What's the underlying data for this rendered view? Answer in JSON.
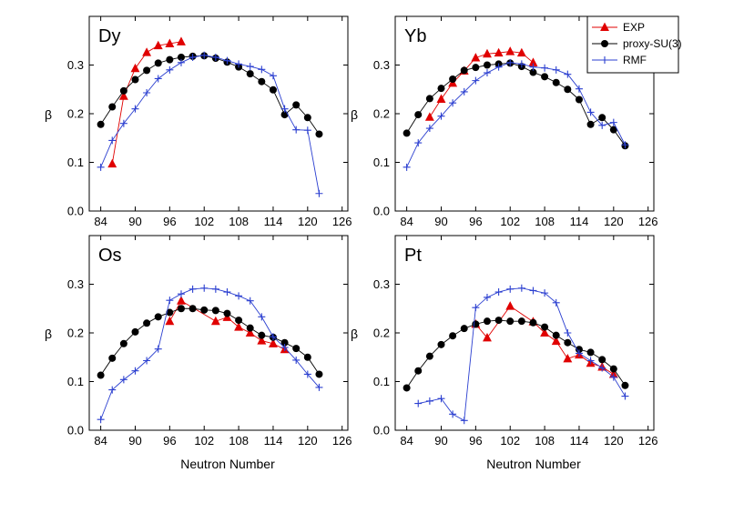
{
  "chart_data": {
    "type": "line",
    "xlabel": "Neutron Number",
    "ylabel": "β",
    "xlim": [
      82,
      127
    ],
    "ylim": [
      0.0,
      0.4
    ],
    "xticks": [
      84,
      90,
      96,
      102,
      108,
      114,
      120,
      126
    ],
    "yticks": [
      0.0,
      0.1,
      0.2,
      0.3
    ],
    "legend": {
      "placement": "top-right",
      "entries": [
        "EXP",
        "proxy-SU(3)",
        "RMF"
      ]
    },
    "colors": {
      "EXP": "#e00000",
      "proxy-SU(3)": "#000000",
      "RMF": "#2b3fd0"
    },
    "panels": [
      {
        "title": "Dy",
        "series": [
          {
            "name": "EXP",
            "x": [
              86,
              88,
              90,
              92,
              94,
              96,
              98
            ],
            "y": [
              0.097,
              0.236,
              0.293,
              0.326,
              0.34,
              0.344,
              0.348
            ]
          },
          {
            "name": "proxy-SU(3)",
            "x": [
              84,
              86,
              88,
              90,
              92,
              94,
              96,
              98,
              100,
              102,
              104,
              106,
              108,
              110,
              112,
              114,
              116,
              118,
              120,
              122
            ],
            "y": [
              0.178,
              0.214,
              0.247,
              0.27,
              0.289,
              0.304,
              0.311,
              0.316,
              0.318,
              0.319,
              0.314,
              0.306,
              0.296,
              0.282,
              0.266,
              0.249,
              0.198,
              0.218,
              0.192,
              0.158
            ]
          },
          {
            "name": "RMF",
            "x": [
              84,
              86,
              88,
              90,
              92,
              94,
              96,
              98,
              100,
              102,
              104,
              106,
              108,
              110,
              112,
              114,
              116,
              118,
              120,
              122
            ],
            "y": [
              0.09,
              0.145,
              0.18,
              0.21,
              0.243,
              0.272,
              0.29,
              0.305,
              0.316,
              0.32,
              0.316,
              0.309,
              0.302,
              0.297,
              0.291,
              0.278,
              0.21,
              0.167,
              0.166,
              0.036
            ]
          }
        ]
      },
      {
        "title": "Yb",
        "series": [
          {
            "name": "EXP",
            "x": [
              88,
              90,
              92,
              94,
              96,
              98,
              100,
              102,
              104,
              106
            ],
            "y": [
              0.193,
              0.23,
              0.263,
              0.288,
              0.315,
              0.323,
              0.325,
              0.328,
              0.325,
              0.305
            ]
          },
          {
            "name": "proxy-SU(3)",
            "x": [
              84,
              86,
              88,
              90,
              92,
              94,
              96,
              98,
              100,
              102,
              104,
              106,
              108,
              110,
              112,
              114,
              116,
              118,
              120,
              122
            ],
            "y": [
              0.16,
              0.198,
              0.231,
              0.252,
              0.271,
              0.289,
              0.295,
              0.3,
              0.302,
              0.304,
              0.297,
              0.285,
              0.276,
              0.264,
              0.25,
              0.229,
              0.178,
              0.192,
              0.167,
              0.134
            ]
          },
          {
            "name": "RMF",
            "x": [
              84,
              86,
              88,
              90,
              92,
              94,
              96,
              98,
              100,
              102,
              104,
              106,
              108,
              110,
              112,
              114,
              116,
              118,
              120,
              122
            ],
            "y": [
              0.09,
              0.14,
              0.17,
              0.195,
              0.222,
              0.245,
              0.268,
              0.284,
              0.296,
              0.305,
              0.302,
              0.296,
              0.294,
              0.29,
              0.281,
              0.251,
              0.203,
              0.176,
              0.182,
              0.136
            ]
          }
        ]
      },
      {
        "title": "Os",
        "series": [
          {
            "name": "EXP",
            "x": [
              96,
              98,
              104,
              106,
              108,
              110,
              112,
              114,
              116
            ],
            "y": [
              0.224,
              0.266,
              0.224,
              0.232,
              0.212,
              0.2,
              0.184,
              0.178,
              0.166
            ]
          },
          {
            "name": "proxy-SU(3)",
            "x": [
              84,
              86,
              88,
              90,
              92,
              94,
              96,
              98,
              100,
              102,
              104,
              106,
              108,
              110,
              112,
              114,
              116,
              118,
              120,
              122
            ],
            "y": [
              0.113,
              0.148,
              0.178,
              0.202,
              0.22,
              0.233,
              0.242,
              0.25,
              0.25,
              0.247,
              0.246,
              0.24,
              0.226,
              0.21,
              0.195,
              0.191,
              0.18,
              0.168,
              0.15,
              0.115
            ]
          },
          {
            "name": "RMF",
            "x": [
              84,
              86,
              88,
              90,
              92,
              94,
              96,
              98,
              100,
              102,
              104,
              106,
              108,
              110,
              112,
              114,
              116,
              118,
              120,
              122
            ],
            "y": [
              0.022,
              0.083,
              0.104,
              0.122,
              0.143,
              0.167,
              0.267,
              0.28,
              0.29,
              0.292,
              0.29,
              0.284,
              0.276,
              0.266,
              0.233,
              0.192,
              0.17,
              0.144,
              0.115,
              0.088
            ]
          }
        ]
      },
      {
        "title": "Pt",
        "series": [
          {
            "name": "EXP",
            "x": [
              96,
              98,
              102,
              106,
              108,
              110,
              112,
              114,
              116,
              118,
              120
            ],
            "y": [
              0.218,
              0.19,
              0.255,
              0.223,
              0.2,
              0.183,
              0.147,
              0.155,
              0.138,
              0.13,
              0.115
            ]
          },
          {
            "name": "proxy-SU(3)",
            "x": [
              84,
              86,
              88,
              90,
              92,
              94,
              96,
              98,
              100,
              102,
              104,
              106,
              108,
              110,
              112,
              114,
              116,
              118,
              120,
              122
            ],
            "y": [
              0.087,
              0.122,
              0.152,
              0.176,
              0.194,
              0.209,
              0.218,
              0.224,
              0.226,
              0.224,
              0.224,
              0.221,
              0.212,
              0.195,
              0.18,
              0.166,
              0.16,
              0.145,
              0.126,
              0.092
            ]
          },
          {
            "name": "RMF",
            "x": [
              86,
              88,
              90,
              92,
              94,
              96,
              98,
              100,
              102,
              104,
              106,
              108,
              110,
              112,
              114,
              116,
              118,
              120,
              122
            ],
            "y": [
              0.055,
              0.06,
              0.065,
              0.033,
              0.02,
              0.252,
              0.273,
              0.284,
              0.29,
              0.292,
              0.287,
              0.282,
              0.262,
              0.2,
              0.158,
              0.143,
              0.128,
              0.109,
              0.07
            ]
          }
        ]
      }
    ]
  }
}
